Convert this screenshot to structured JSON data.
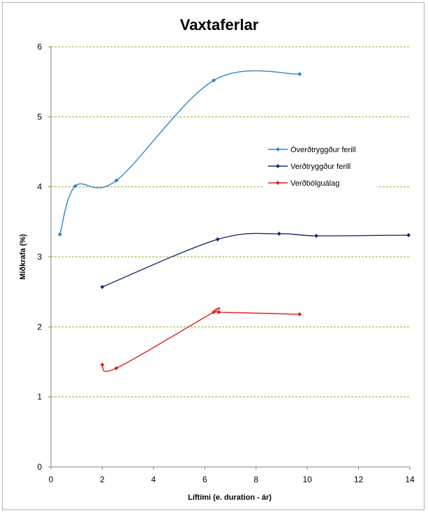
{
  "chart_data": {
    "type": "line",
    "title": "Vaxtaferlar",
    "xlabel": "Líftími (e. duration - ár)",
    "ylabel": "Miðkrafa (%)",
    "xlim": [
      0,
      14
    ],
    "ylim": [
      0,
      6
    ],
    "x_ticks": [
      0,
      2,
      4,
      6,
      8,
      10,
      12,
      14
    ],
    "y_ticks": [
      0,
      1,
      2,
      3,
      4,
      5,
      6
    ],
    "grid": "horizontal dashed",
    "legend_position": "right",
    "series": [
      {
        "name": "Óverðtryggður ferill",
        "color": "#2e86c8",
        "smooth": true,
        "points": [
          {
            "x": 0.35,
            "y": 3.32
          },
          {
            "x": 0.95,
            "y": 4.01
          },
          {
            "x": 2.55,
            "y": 4.09
          },
          {
            "x": 6.35,
            "y": 5.52
          },
          {
            "x": 9.7,
            "y": 5.61
          }
        ]
      },
      {
        "name": "Verðtryggður ferill",
        "color": "#1a2e6e",
        "smooth": true,
        "points": [
          {
            "x": 2.0,
            "y": 2.57
          },
          {
            "x": 6.5,
            "y": 3.25
          },
          {
            "x": 8.9,
            "y": 3.33
          },
          {
            "x": 10.35,
            "y": 3.3
          },
          {
            "x": 13.95,
            "y": 3.31
          }
        ]
      },
      {
        "name": "Verðbólguálag",
        "color": "#e02020",
        "smooth": true,
        "points": [
          {
            "x": 2.0,
            "y": 1.46
          },
          {
            "x": 2.55,
            "y": 1.41
          },
          {
            "x": 6.35,
            "y": 2.21
          },
          {
            "x": 6.55,
            "y": 2.21
          },
          {
            "x": 9.7,
            "y": 2.18
          }
        ]
      }
    ]
  }
}
